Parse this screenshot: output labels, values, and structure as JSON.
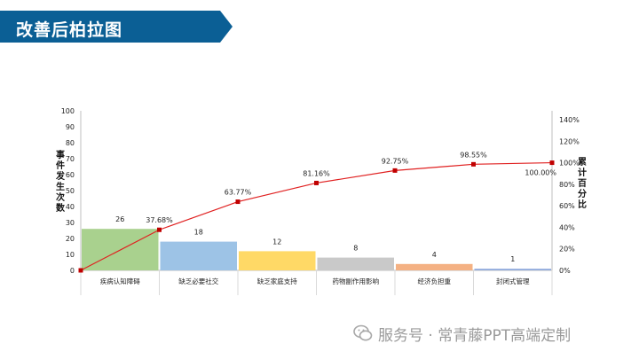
{
  "slide": {
    "title": "改善后柏拉图",
    "watermark": "服务号 · 常青藤PPT高端定制",
    "watermark_icon": "wechat-icon"
  },
  "chart_data": {
    "type": "pareto",
    "categories": [
      "疾病认知障碍",
      "缺乏必要社交",
      "缺乏家庭支持",
      "药物副作用影响",
      "经济负担重",
      "封闭式管理"
    ],
    "values": [
      26,
      18,
      12,
      8,
      4,
      1
    ],
    "value_labels": [
      "26",
      "18",
      "12",
      "8",
      "4",
      "1"
    ],
    "bar_colors": [
      "#a9d18e",
      "#9dc3e6",
      "#ffd966",
      "#c9c9c9",
      "#f4b183",
      "#8faadc"
    ],
    "cumulative": [
      0,
      37.68,
      63.77,
      81.16,
      92.75,
      98.55,
      100.0
    ],
    "cumulative_labels": [
      "",
      "37.68%",
      "63.77%",
      "81.16%",
      "92.75%",
      "98.55%",
      "100.00%"
    ],
    "ylabel": "事件发生次数",
    "y2label": "累计百分比",
    "ylim": [
      0,
      100
    ],
    "yticks": [
      "0",
      "10",
      "20",
      "30",
      "40",
      "50",
      "60",
      "70",
      "80",
      "90",
      "100"
    ],
    "y2lim": [
      0,
      140
    ],
    "y2ticks": [
      "0%",
      "20%",
      "40%",
      "60%",
      "80%",
      "100%",
      "120%",
      "140%"
    ],
    "line_color": "#e02020"
  }
}
